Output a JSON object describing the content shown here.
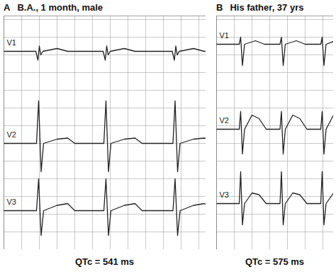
{
  "chart_data": [
    {
      "type": "line",
      "panel": "A",
      "title": "B.A., 1 month, male",
      "caption": "QTc = 541 ms",
      "xlim": [
        0,
        57
      ],
      "ylim": [
        0,
        66
      ],
      "xticks": [
        0,
        5,
        10,
        15,
        20,
        25,
        30,
        35,
        40,
        45,
        50,
        55
      ],
      "yticks": [
        0,
        5,
        10,
        15,
        20,
        25,
        30,
        35,
        40,
        45,
        50,
        55,
        60,
        65
      ],
      "grid": true,
      "tick_labels": false,
      "series": [
        {
          "name": "V1",
          "color": "#222222",
          "x": [
            0,
            9,
            9.6,
            10,
            10.4,
            11,
            15,
            18,
            28,
            28.6,
            29,
            29.4,
            30,
            34,
            37,
            47.5,
            48.1,
            48.5,
            48.9,
            49.5,
            53.5,
            56.5,
            57
          ],
          "values": [
            56,
            56,
            53.5,
            57.5,
            55,
            56,
            56.8,
            56,
            56,
            53.5,
            57.5,
            55,
            56,
            56.8,
            56,
            56,
            53.5,
            57.5,
            55,
            56,
            56.8,
            56,
            56
          ]
        },
        {
          "name": "V2",
          "color": "#222222",
          "x": [
            0,
            9.2,
            9.8,
            10.5,
            11.2,
            15,
            18,
            20,
            28.2,
            28.8,
            29.5,
            30.2,
            34,
            37,
            39,
            47.7,
            48.3,
            49,
            49.7,
            53.5,
            56.5,
            57
          ],
          "values": [
            30,
            30,
            42,
            22,
            30,
            31.2,
            31.5,
            30,
            30,
            42,
            22,
            30,
            31.2,
            31.5,
            30,
            30,
            42,
            22,
            30,
            31.2,
            31.5,
            31.4
          ]
        },
        {
          "name": "V3",
          "color": "#222222",
          "x": [
            0,
            9.2,
            9.8,
            10.5,
            11.2,
            15,
            18,
            20,
            28.2,
            28.8,
            29.5,
            30.2,
            34,
            37,
            39,
            47.7,
            48.3,
            49,
            49.7,
            53.5,
            56.5,
            57
          ],
          "values": [
            11,
            11,
            20,
            4,
            11,
            12.5,
            13,
            11,
            11,
            20,
            4,
            11,
            12.5,
            13,
            11,
            11,
            20,
            4,
            11,
            12.5,
            13,
            12.8
          ]
        }
      ]
    },
    {
      "type": "line",
      "panel": "B",
      "title": "His father, 37 yrs",
      "caption": "QTc = 575 ms",
      "xlim": [
        0,
        33
      ],
      "ylim": [
        0,
        66
      ],
      "xticks": [
        0,
        5,
        10,
        15,
        20,
        25,
        30
      ],
      "yticks": [
        0,
        5,
        10,
        15,
        20,
        25,
        30,
        35,
        40,
        45,
        50,
        55,
        60,
        65
      ],
      "grid": true,
      "tick_labels": false,
      "series": [
        {
          "name": "V1",
          "color": "#222222",
          "x": [
            0,
            6.4,
            6.8,
            7.3,
            7.9,
            11,
            13.5,
            17.9,
            18.3,
            18.8,
            19.4,
            22.5,
            25,
            29.4,
            29.8,
            30.3,
            30.9,
            33
          ],
          "values": [
            58,
            58,
            60,
            52,
            58,
            59,
            58,
            58,
            60,
            52,
            58,
            59,
            58,
            58,
            60,
            52,
            58,
            58.8
          ]
        },
        {
          "name": "V2",
          "color": "#222222",
          "x": [
            0,
            6.4,
            6.8,
            7.3,
            7.9,
            10,
            12,
            14,
            17.9,
            18.3,
            18.8,
            19.4,
            21.5,
            23.5,
            25.5,
            29.4,
            29.8,
            30.3,
            30.9,
            33
          ],
          "values": [
            34,
            34,
            39,
            27,
            34,
            38,
            37,
            34,
            34,
            39,
            27,
            34,
            38,
            37,
            34,
            34,
            39,
            27,
            34,
            38
          ]
        },
        {
          "name": "V3",
          "color": "#222222",
          "x": [
            0,
            6.4,
            6.8,
            7.3,
            7.9,
            10,
            12,
            14,
            17.9,
            18.3,
            18.8,
            19.4,
            21.5,
            23.5,
            25.5,
            29.4,
            29.8,
            30.3,
            30.9,
            33
          ],
          "values": [
            13,
            13,
            22,
            7,
            13,
            16,
            15.5,
            13,
            13,
            22,
            7,
            13,
            16,
            15.5,
            13,
            13,
            22,
            7,
            13,
            16
          ]
        }
      ]
    }
  ]
}
